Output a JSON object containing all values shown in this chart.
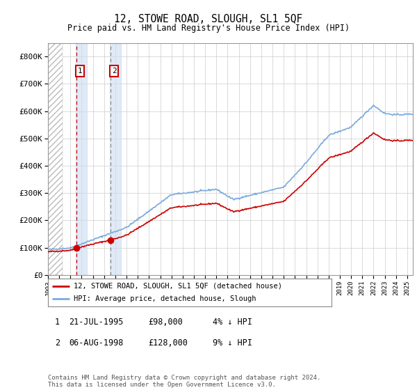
{
  "title": "12, STOWE ROAD, SLOUGH, SL1 5QF",
  "subtitle": "Price paid vs. HM Land Registry's House Price Index (HPI)",
  "ylim": [
    0,
    850000
  ],
  "yticks": [
    0,
    100000,
    200000,
    300000,
    400000,
    500000,
    600000,
    700000,
    800000
  ],
  "ytick_labels": [
    "£0",
    "£100K",
    "£200K",
    "£300K",
    "£400K",
    "£500K",
    "£600K",
    "£700K",
    "£800K"
  ],
  "sale1_date": 1995.55,
  "sale1_price": 98000,
  "sale1_label": "1",
  "sale1_text": "21-JUL-1995",
  "sale1_amount": "£98,000",
  "sale1_pct": "4% ↓ HPI",
  "sale2_date": 1998.59,
  "sale2_price": 128000,
  "sale2_label": "2",
  "sale2_text": "06-AUG-1998",
  "sale2_amount": "£128,000",
  "sale2_pct": "9% ↓ HPI",
  "hpi_color": "#7aaadd",
  "sale_color": "#cc0000",
  "legend_label1": "12, STOWE ROAD, SLOUGH, SL1 5QF (detached house)",
  "legend_label2": "HPI: Average price, detached house, Slough",
  "footnote": "Contains HM Land Registry data © Crown copyright and database right 2024.\nThis data is licensed under the Open Government Licence v3.0.",
  "xmin": 1993,
  "xmax": 2025.5
}
